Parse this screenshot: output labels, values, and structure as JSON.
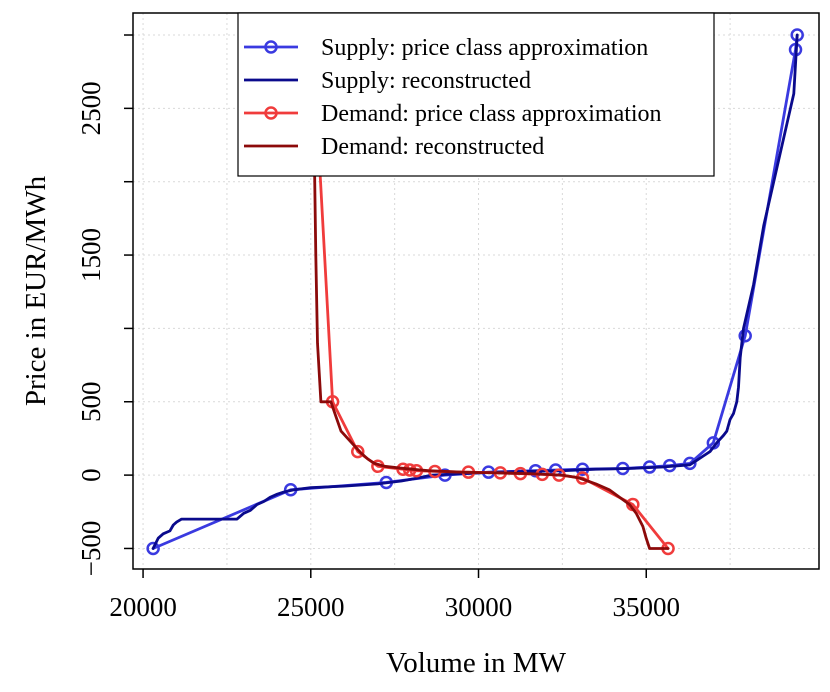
{
  "chart_data": {
    "type": "line",
    "xlabel": "Volume in MW",
    "ylabel": "Price in EUR/MWh",
    "xlim": [
      19700,
      40150
    ],
    "ylim": [
      -640,
      3150
    ],
    "x_ticks": [
      20000,
      25000,
      30000,
      35000
    ],
    "y_ticks": [
      -500,
      0,
      500,
      1500,
      2500
    ],
    "y_tick_labels": [
      "−500",
      "0",
      "500",
      "1500",
      "2500"
    ],
    "grid": true,
    "legend_position": "top-center",
    "series": [
      {
        "name": "Supply: price class approximation",
        "color": "#3a3ae0",
        "style": "line-points",
        "points": [
          [
            20300,
            -500
          ],
          [
            24400,
            -100
          ],
          [
            27250,
            -50
          ],
          [
            29000,
            0
          ],
          [
            30300,
            20
          ],
          [
            31700,
            30
          ],
          [
            32300,
            35
          ],
          [
            33100,
            40
          ],
          [
            34300,
            45
          ],
          [
            35100,
            55
          ],
          [
            35700,
            65
          ],
          [
            36300,
            80
          ],
          [
            37000,
            220
          ],
          [
            37950,
            950
          ],
          [
            39450,
            2900
          ],
          [
            39500,
            3000
          ]
        ]
      },
      {
        "name": "Supply: reconstructed",
        "color": "#0a0a8c",
        "style": "step-line",
        "points": [
          [
            20300,
            -500
          ],
          [
            20450,
            -430
          ],
          [
            20600,
            -400
          ],
          [
            20800,
            -380
          ],
          [
            20900,
            -340
          ],
          [
            21000,
            -320
          ],
          [
            21150,
            -300
          ],
          [
            22800,
            -300
          ],
          [
            23000,
            -260
          ],
          [
            23200,
            -240
          ],
          [
            23400,
            -200
          ],
          [
            23600,
            -180
          ],
          [
            23800,
            -150
          ],
          [
            24000,
            -130
          ],
          [
            24200,
            -115
          ],
          [
            24500,
            -100
          ],
          [
            25000,
            -85
          ],
          [
            26000,
            -75
          ],
          [
            27000,
            -60
          ],
          [
            27700,
            -40
          ],
          [
            28200,
            -20
          ],
          [
            28600,
            0
          ],
          [
            29500,
            10
          ],
          [
            30500,
            20
          ],
          [
            31500,
            25
          ],
          [
            32500,
            30
          ],
          [
            33500,
            40
          ],
          [
            34500,
            45
          ],
          [
            35500,
            55
          ],
          [
            36300,
            70
          ],
          [
            36500,
            100
          ],
          [
            36700,
            130
          ],
          [
            36900,
            160
          ],
          [
            37100,
            220
          ],
          [
            37300,
            270
          ],
          [
            37400,
            300
          ],
          [
            37500,
            380
          ],
          [
            37600,
            420
          ],
          [
            37700,
            500
          ],
          [
            37750,
            600
          ],
          [
            37800,
            800
          ],
          [
            37900,
            1000
          ],
          [
            38200,
            1300
          ],
          [
            38500,
            1700
          ],
          [
            38900,
            2100
          ],
          [
            39200,
            2400
          ],
          [
            39400,
            2600
          ],
          [
            39500,
            3000
          ]
        ]
      },
      {
        "name": "Demand: price class approximation",
        "color": "#f03c3c",
        "style": "line-points",
        "points": [
          [
            25050,
            3000
          ],
          [
            25650,
            500
          ],
          [
            26400,
            160
          ],
          [
            27000,
            60
          ],
          [
            27750,
            40
          ],
          [
            27950,
            35
          ],
          [
            28150,
            30
          ],
          [
            28700,
            25
          ],
          [
            29700,
            20
          ],
          [
            30650,
            15
          ],
          [
            31250,
            10
          ],
          [
            31900,
            5
          ],
          [
            32400,
            0
          ],
          [
            33100,
            -20
          ],
          [
            34600,
            -200
          ],
          [
            35650,
            -500
          ]
        ]
      },
      {
        "name": "Demand: reconstructed",
        "color": "#8c0a0a",
        "style": "step-line",
        "points": [
          [
            25050,
            3000
          ],
          [
            25100,
            2300
          ],
          [
            25150,
            1500
          ],
          [
            25200,
            900
          ],
          [
            25250,
            700
          ],
          [
            25300,
            500
          ],
          [
            25600,
            500
          ],
          [
            25750,
            400
          ],
          [
            25900,
            300
          ],
          [
            26100,
            250
          ],
          [
            26300,
            200
          ],
          [
            26500,
            150
          ],
          [
            26700,
            110
          ],
          [
            26900,
            80
          ],
          [
            27200,
            60
          ],
          [
            27600,
            50
          ],
          [
            28000,
            40
          ],
          [
            28500,
            30
          ],
          [
            29500,
            20
          ],
          [
            30500,
            15
          ],
          [
            31500,
            10
          ],
          [
            32500,
            0
          ],
          [
            33000,
            -20
          ],
          [
            33500,
            -60
          ],
          [
            33900,
            -100
          ],
          [
            34200,
            -150
          ],
          [
            34500,
            -200
          ],
          [
            34700,
            -260
          ],
          [
            34900,
            -350
          ],
          [
            35000,
            -430
          ],
          [
            35100,
            -500
          ],
          [
            35650,
            -500
          ]
        ]
      }
    ]
  }
}
